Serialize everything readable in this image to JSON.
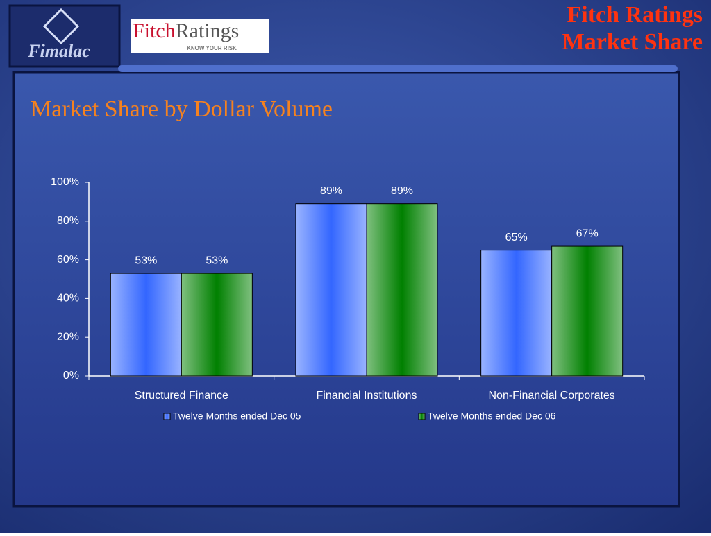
{
  "header": {
    "logo_text": "Fimalac",
    "brand_left": "Fitch",
    "brand_right": "Ratings",
    "tagline": "KNOW YOUR RISK",
    "title_lines": [
      "Fitch Ratings",
      "Market Share"
    ]
  },
  "chart_data": {
    "type": "bar",
    "title": "Market Share by Dollar Volume",
    "categories": [
      "Structured Finance",
      "Financial Institutions",
      "Non-Financial Corporates"
    ],
    "series": [
      {
        "name": "Twelve Months ended Dec 05",
        "color": "#3366ff",
        "values": [
          53,
          89,
          65
        ],
        "value_labels": [
          "53%",
          "89%",
          "65%"
        ]
      },
      {
        "name": "Twelve Months ended Dec 06",
        "color": "#008000",
        "values": [
          53,
          89,
          67
        ],
        "value_labels": [
          "53%",
          "89%",
          "67%"
        ]
      }
    ],
    "ylim": [
      0,
      100
    ],
    "yticks": [
      {
        "value": 0,
        "label": "0%"
      },
      {
        "value": 20,
        "label": "20%"
      },
      {
        "value": 40,
        "label": "40%"
      },
      {
        "value": 60,
        "label": "60%"
      },
      {
        "value": 80,
        "label": "80%"
      },
      {
        "value": 100,
        "label": "100%"
      }
    ],
    "legend": "bottom"
  }
}
